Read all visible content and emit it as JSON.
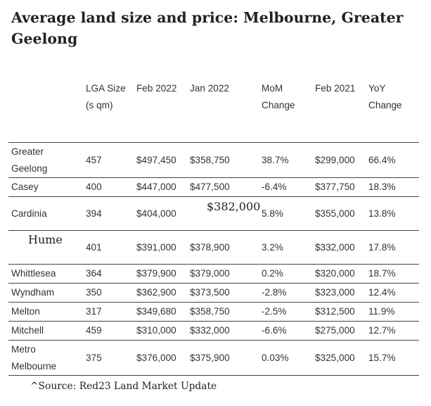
{
  "title": "Average land size and price: Melbourne, Greater Geelong",
  "headers": {
    "lga_size": "LGA Size (s qm)",
    "feb_2022": "Feb 2022",
    "jan_2022": "Jan 2022",
    "mom_change": "MoM Change",
    "feb_2021": "Feb 2021",
    "yoy_change": "YoY Change"
  },
  "rows": [
    {
      "lga": "Greater Geelong",
      "size": "457",
      "feb_2022": "$497,450",
      "jan_2022": "$358,750",
      "mom": "38.7%",
      "feb_2021": "$299,000",
      "yoy": "66.4%"
    },
    {
      "lga": "Casey",
      "size": "400",
      "feb_2022": "$447,000",
      "jan_2022": "$477,500",
      "mom": "-6.4%",
      "feb_2021": "$377,750",
      "yoy": "18.3%"
    },
    {
      "lga": "Cardinia",
      "size": "394",
      "feb_2022": "$404,000",
      "jan_2022": "$382,000",
      "mom": "5.8%",
      "feb_2021": "$355,000",
      "yoy": "13.8%"
    },
    {
      "lga": "Hume",
      "size": "401",
      "feb_2022": "$391,000",
      "jan_2022": "$378,900",
      "mom": "3.2%",
      "feb_2021": "$332,000",
      "yoy": "17.8%"
    },
    {
      "lga": "Whittlesea",
      "size": "364",
      "feb_2022": "$379,900",
      "jan_2022": "$379,000",
      "mom": "0.2%",
      "feb_2021": "$320,000",
      "yoy": "18.7%"
    },
    {
      "lga": "Wyndham",
      "size": "350",
      "feb_2022": "$362,900",
      "jan_2022": "$373,500",
      "mom": "-2.8%",
      "feb_2021": "$323,000",
      "yoy": "12.4%"
    },
    {
      "lga": "Melton",
      "size": "317",
      "feb_2022": "$349,680",
      "jan_2022": "$358,750",
      "mom": "-2.5%",
      "feb_2021": "$312,500",
      "yoy": "11.9%"
    },
    {
      "lga": "Mitchell",
      "size": "459",
      "feb_2022": "$310,000",
      "jan_2022": "$332,000",
      "mom": "-6.6%",
      "feb_2021": "$275,000",
      "yoy": "12.7%"
    },
    {
      "lga": "Metro Melbourne",
      "size": "375",
      "feb_2022": "$376,000",
      "jan_2022": "$375,900",
      "mom": "0.03%",
      "feb_2021": "$325,000",
      "yoy": "15.7%"
    }
  ],
  "source": "^Source: Red23 Land Market Update"
}
